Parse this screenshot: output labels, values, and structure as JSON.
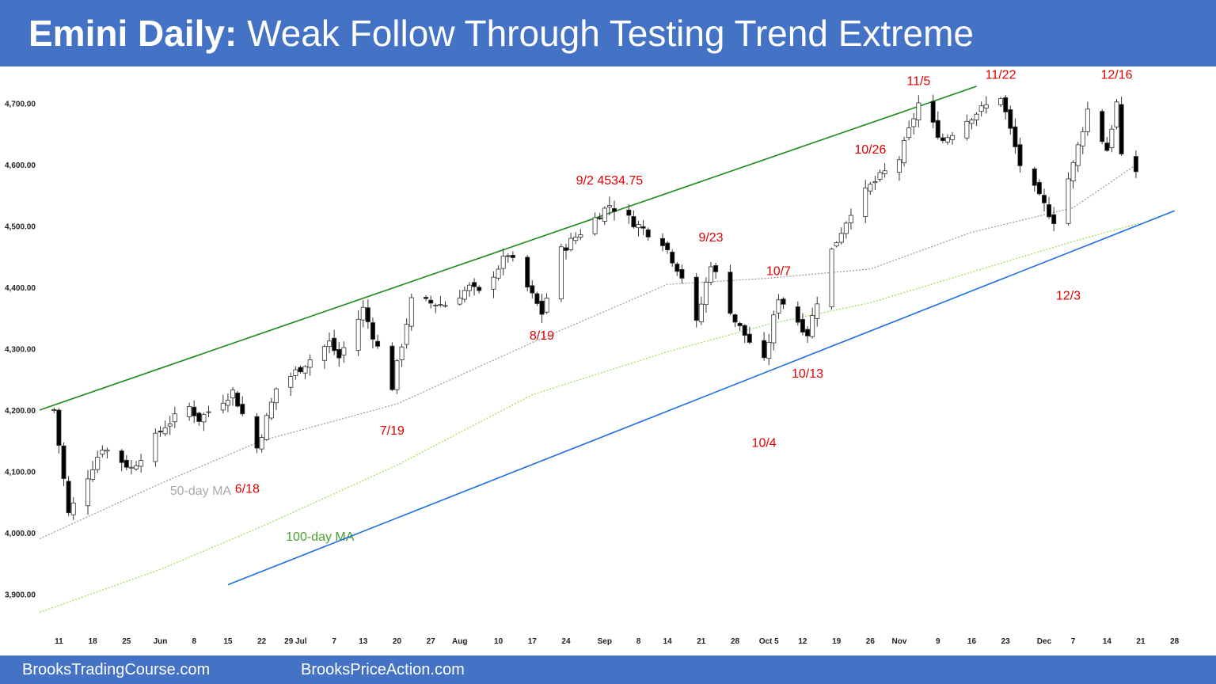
{
  "title": {
    "bold": "Emini Daily:",
    "rest": " Weak Follow Through Testing Trend Extreme"
  },
  "footer": {
    "left": "BrooksTradingCourse.com",
    "right": "BrooksPriceAction.com"
  },
  "colors": {
    "title_bar": "#4472c4",
    "bull_body": "#ffffff",
    "bear_body": "#000000",
    "wick": "#333333",
    "upper_trendline": "#1a8a1a",
    "lower_trendline": "#1f6fe0",
    "ma50": "#999999",
    "ma100": "#99dd55",
    "annotation": "#e00000"
  },
  "chart_data": {
    "type": "candlestick",
    "instrument": "Emini",
    "ylim": [
      3850,
      4750
    ],
    "y_ticks": [
      3900,
      4000,
      4100,
      4200,
      4300,
      4400,
      4500,
      4600,
      4700
    ],
    "y_tick_labels": [
      "3,900.00",
      "4,000.00",
      "4,100.00",
      "4,200.00",
      "4,300.00",
      "4,400.00",
      "4,500.00",
      "4,600.00",
      "4,700.00"
    ],
    "x_ticks": [
      {
        "label": "11",
        "date": "2021-05-11"
      },
      {
        "label": "18",
        "date": "2021-05-18"
      },
      {
        "label": "25",
        "date": "2021-05-25"
      },
      {
        "label": "Jun",
        "date": "2021-06-01"
      },
      {
        "label": "8",
        "date": "2021-06-08"
      },
      {
        "label": "15",
        "date": "2021-06-15"
      },
      {
        "label": "22",
        "date": "2021-06-22"
      },
      {
        "label": "29 Jul",
        "date": "2021-06-29"
      },
      {
        "label": "7",
        "date": "2021-07-07"
      },
      {
        "label": "13",
        "date": "2021-07-13"
      },
      {
        "label": "20",
        "date": "2021-07-20"
      },
      {
        "label": "27",
        "date": "2021-07-27"
      },
      {
        "label": "Aug",
        "date": "2021-08-02"
      },
      {
        "label": "10",
        "date": "2021-08-10"
      },
      {
        "label": "17",
        "date": "2021-08-17"
      },
      {
        "label": "24",
        "date": "2021-08-24"
      },
      {
        "label": "Sep",
        "date": "2021-09-01"
      },
      {
        "label": "8",
        "date": "2021-09-08"
      },
      {
        "label": "14",
        "date": "2021-09-14"
      },
      {
        "label": "21",
        "date": "2021-09-21"
      },
      {
        "label": "28",
        "date": "2021-09-28"
      },
      {
        "label": "Oct 5",
        "date": "2021-10-05"
      },
      {
        "label": "12",
        "date": "2021-10-12"
      },
      {
        "label": "19",
        "date": "2021-10-19"
      },
      {
        "label": "26",
        "date": "2021-10-26"
      },
      {
        "label": "Nov",
        "date": "2021-11-01"
      },
      {
        "label": "9",
        "date": "2021-11-09"
      },
      {
        "label": "16",
        "date": "2021-11-16"
      },
      {
        "label": "23",
        "date": "2021-11-23"
      },
      {
        "label": "Dec",
        "date": "2021-12-01"
      },
      {
        "label": "7",
        "date": "2021-12-07"
      },
      {
        "label": "14",
        "date": "2021-12-14"
      },
      {
        "label": "21",
        "date": "2021-12-21"
      },
      {
        "label": "28",
        "date": "2021-12-28"
      }
    ],
    "xlim": [
      "2021-05-07",
      "2021-12-31"
    ],
    "pivots": [
      {
        "date": "2021-05-10",
        "price": 4200
      },
      {
        "date": "2021-05-13",
        "price": 4030
      },
      {
        "date": "2021-05-20",
        "price": 4140
      },
      {
        "date": "2021-05-26",
        "price": 4105
      },
      {
        "date": "2021-06-02",
        "price": 4175
      },
      {
        "date": "2021-06-07",
        "price": 4205
      },
      {
        "date": "2021-06-09",
        "price": 4185
      },
      {
        "date": "2021-06-16",
        "price": 4230
      },
      {
        "date": "2021-06-21",
        "price": 4138
      },
      {
        "date": "2021-06-25",
        "price": 4235
      },
      {
        "date": "2021-07-06",
        "price": 4310
      },
      {
        "date": "2021-07-08",
        "price": 4285
      },
      {
        "date": "2021-07-13",
        "price": 4365
      },
      {
        "date": "2021-07-19",
        "price": 4238
      },
      {
        "date": "2021-07-23",
        "price": 4378
      },
      {
        "date": "2021-07-30",
        "price": 4372
      },
      {
        "date": "2021-08-04",
        "price": 4400
      },
      {
        "date": "2021-08-06",
        "price": 4390
      },
      {
        "date": "2021-08-12",
        "price": 4455
      },
      {
        "date": "2021-08-19",
        "price": 4358
      },
      {
        "date": "2021-08-23",
        "price": 4460
      },
      {
        "date": "2021-08-27",
        "price": 4490
      },
      {
        "date": "2021-09-02",
        "price": 4534.75
      },
      {
        "date": "2021-09-09",
        "price": 4495
      },
      {
        "date": "2021-09-13",
        "price": 4475
      },
      {
        "date": "2021-09-17",
        "price": 4418
      },
      {
        "date": "2021-09-20",
        "price": 4340
      },
      {
        "date": "2021-09-23",
        "price": 4440
      },
      {
        "date": "2021-09-28",
        "price": 4345
      },
      {
        "date": "2021-10-04",
        "price": 4278
      },
      {
        "date": "2021-10-07",
        "price": 4385
      },
      {
        "date": "2021-10-13",
        "price": 4325
      },
      {
        "date": "2021-10-18",
        "price": 4460
      },
      {
        "date": "2021-10-22",
        "price": 4525
      },
      {
        "date": "2021-10-26",
        "price": 4565
      },
      {
        "date": "2021-11-01",
        "price": 4610
      },
      {
        "date": "2021-11-05",
        "price": 4700
      },
      {
        "date": "2021-11-10",
        "price": 4640
      },
      {
        "date": "2021-11-16",
        "price": 4680
      },
      {
        "date": "2021-11-22",
        "price": 4712
      },
      {
        "date": "2021-11-26",
        "price": 4600
      },
      {
        "date": "2021-11-30",
        "price": 4545
      },
      {
        "date": "2021-12-03",
        "price": 4510
      },
      {
        "date": "2021-12-07",
        "price": 4600
      },
      {
        "date": "2021-12-10",
        "price": 4690
      },
      {
        "date": "2021-12-14",
        "price": 4625
      },
      {
        "date": "2021-12-16",
        "price": 4700
      },
      {
        "date": "2021-12-17",
        "price": 4610
      },
      {
        "date": "2021-12-20",
        "price": 4590
      }
    ],
    "ma50": {
      "label": "50-day MA",
      "points": [
        {
          "date": "2021-05-07",
          "price": 3990
        },
        {
          "date": "2021-06-01",
          "price": 4080
        },
        {
          "date": "2021-06-22",
          "price": 4150
        },
        {
          "date": "2021-07-20",
          "price": 4210
        },
        {
          "date": "2021-08-17",
          "price": 4310
        },
        {
          "date": "2021-09-14",
          "price": 4405
        },
        {
          "date": "2021-10-05",
          "price": 4415
        },
        {
          "date": "2021-10-26",
          "price": 4430
        },
        {
          "date": "2021-11-16",
          "price": 4490
        },
        {
          "date": "2021-12-07",
          "price": 4530
        },
        {
          "date": "2021-12-20",
          "price": 4600
        }
      ]
    },
    "ma100": {
      "label": "100-day MA",
      "points": [
        {
          "date": "2021-05-07",
          "price": 3870
        },
        {
          "date": "2021-06-01",
          "price": 3940
        },
        {
          "date": "2021-06-22",
          "price": 4010
        },
        {
          "date": "2021-07-20",
          "price": 4110
        },
        {
          "date": "2021-08-17",
          "price": 4225
        },
        {
          "date": "2021-09-14",
          "price": 4295
        },
        {
          "date": "2021-10-05",
          "price": 4340
        },
        {
          "date": "2021-10-26",
          "price": 4375
        },
        {
          "date": "2021-11-16",
          "price": 4425
        },
        {
          "date": "2021-12-07",
          "price": 4475
        },
        {
          "date": "2021-12-21",
          "price": 4505
        }
      ]
    },
    "trendlines": [
      {
        "name": "upper",
        "from": {
          "date": "2021-05-07",
          "price": 4200
        },
        "to": {
          "date": "2021-11-17",
          "price": 4728
        }
      },
      {
        "name": "lower",
        "from": {
          "date": "2021-06-15",
          "price": 3915
        },
        "to": {
          "date": "2021-12-28",
          "price": 4525
        }
      }
    ],
    "annotations": [
      {
        "text": "6/18",
        "date": "2021-06-19",
        "price": 4065
      },
      {
        "text": "7/19",
        "date": "2021-07-19",
        "price": 4160
      },
      {
        "text": "8/19",
        "date": "2021-08-19",
        "price": 4315
      },
      {
        "text": "9/2 4534.75",
        "date": "2021-09-02",
        "price": 4568
      },
      {
        "text": "9/23",
        "date": "2021-09-23",
        "price": 4475
      },
      {
        "text": "10/4",
        "date": "2021-10-04",
        "price": 4140
      },
      {
        "text": "10/7",
        "date": "2021-10-07",
        "price": 4420
      },
      {
        "text": "10/13",
        "date": "2021-10-13",
        "price": 4253
      },
      {
        "text": "10/26",
        "date": "2021-10-26",
        "price": 4618
      },
      {
        "text": "11/5",
        "date": "2021-11-05",
        "price": 4730
      },
      {
        "text": "11/22",
        "date": "2021-11-22",
        "price": 4740
      },
      {
        "text": "12/3",
        "date": "2021-12-06",
        "price": 4380
      },
      {
        "text": "12/16",
        "date": "2021-12-16",
        "price": 4740
      }
    ]
  }
}
